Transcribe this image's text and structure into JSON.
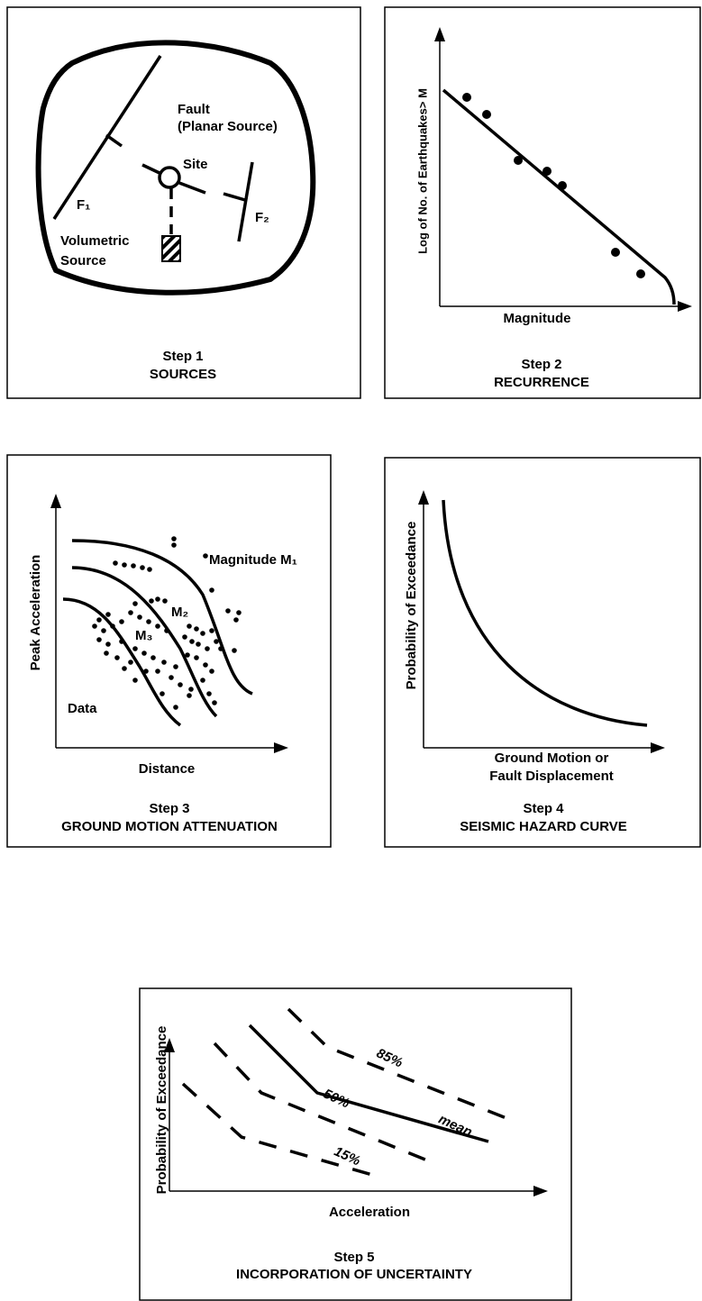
{
  "step1": {
    "labels": {
      "fault": "Fault",
      "planar": "(Planar Source)",
      "site": "Site",
      "f1": "F₁",
      "f2": "F₂",
      "volumetric": "Volumetric",
      "source": "Source"
    },
    "step": "Step 1",
    "title": "SOURCES"
  },
  "step2": {
    "y_axis": "Log of No. of Earthquakes> M",
    "x_axis": "Magnitude",
    "step": "Step 2",
    "title": "RECURRENCE"
  },
  "step3": {
    "y_axis": "Peak Acceleration",
    "x_axis": "Distance",
    "data_label": "Data",
    "curves": [
      "Magnitude M₁",
      "M₂",
      "M₃"
    ],
    "step": "Step 3",
    "title": "GROUND MOTION ATTENUATION"
  },
  "step4": {
    "y_axis": "Probability of Exceedance",
    "x_axis": [
      "Ground Motion or",
      "Fault Displacement"
    ],
    "step": "Step 4",
    "title": "SEISMIC HAZARD CURVE"
  },
  "step5": {
    "y_axis": "Probability of Exceedance",
    "x_axis": "Acceleration",
    "curves": [
      "85%",
      "mean",
      "50%",
      "15%"
    ],
    "step": "Step 5",
    "title": "INCORPORATION OF UNCERTAINTY"
  }
}
